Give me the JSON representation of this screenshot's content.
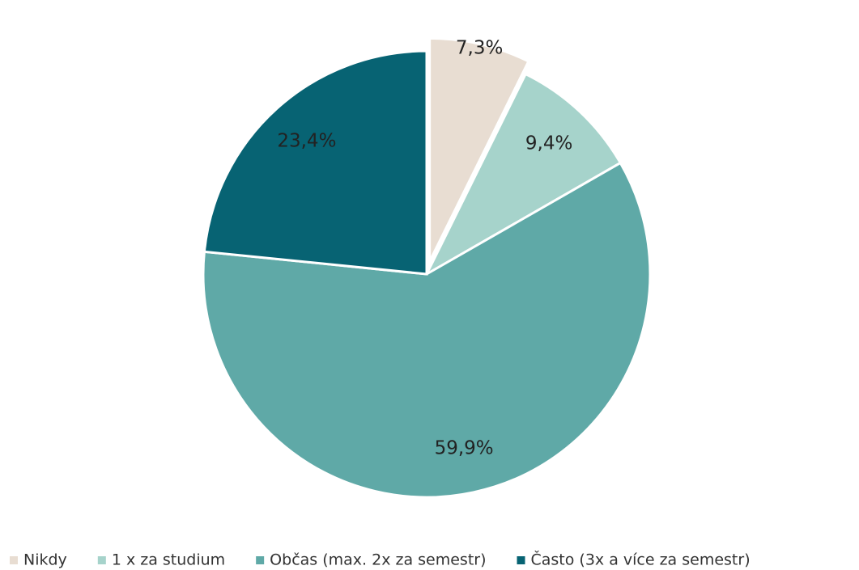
{
  "chart_data": {
    "type": "pie",
    "categories": [
      "Nikdy",
      "1 x za studium",
      "Občas (max. 2x za semestr)",
      "Často (3x a více za semestr)"
    ],
    "values": [
      7.3,
      9.4,
      59.9,
      23.4
    ],
    "value_labels": [
      "7,3%",
      "9,4%",
      "59,9%",
      "23,4%"
    ],
    "colors": [
      "#e8ddd2",
      "#a6d3cb",
      "#5fa9a7",
      "#076373"
    ],
    "explode": [
      true,
      false,
      false,
      false
    ],
    "legend": "bottom"
  }
}
